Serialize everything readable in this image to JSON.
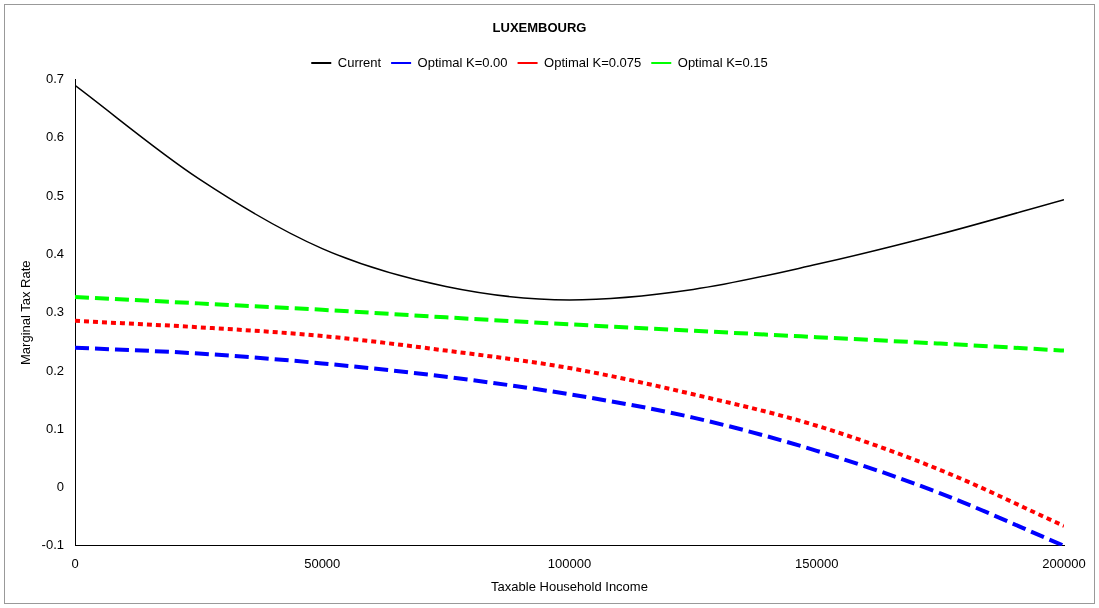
{
  "chart_data": {
    "type": "line",
    "title": "LUXEMBOURG",
    "xlabel": "Taxable Household Income",
    "ylabel": "Marginal Tax Rate",
    "x": [
      0,
      25000,
      50000,
      75000,
      100000,
      125000,
      150000,
      175000,
      200000
    ],
    "series": [
      {
        "name": "Current",
        "color": "#000000",
        "line_style": "solid",
        "values": [
          0.69,
          0.53,
          0.41,
          0.345,
          0.322,
          0.34,
          0.383,
          0.435,
          0.494
        ]
      },
      {
        "name": "Optimal K=0.00",
        "color": "#0000ff",
        "line_style": "dashed",
        "values": [
          0.24,
          0.23,
          0.213,
          0.19,
          0.16,
          0.12,
          0.063,
          -0.01,
          -0.1
        ]
      },
      {
        "name": "Optimal K=0.075",
        "color": "#ff0000",
        "line_style": "dotted",
        "values": [
          0.286,
          0.275,
          0.26,
          0.235,
          0.205,
          0.16,
          0.106,
          0.03,
          -0.066
        ]
      },
      {
        "name": "Optimal K=0.15",
        "color": "#00ff00",
        "line_style": "dashed",
        "values": [
          0.327,
          0.316,
          0.305,
          0.292,
          0.28,
          0.269,
          0.258,
          0.247,
          0.235
        ]
      }
    ],
    "xlim": [
      0,
      200000
    ],
    "xticks": [
      0,
      50000,
      100000,
      150000,
      200000
    ],
    "ylim": [
      -0.1,
      0.7
    ],
    "yticks": [
      -0.1,
      0,
      0.1,
      0.2,
      0.3,
      0.4,
      0.5,
      0.6,
      0.7
    ],
    "grid": false,
    "legend": "top",
    "marker": "none"
  }
}
